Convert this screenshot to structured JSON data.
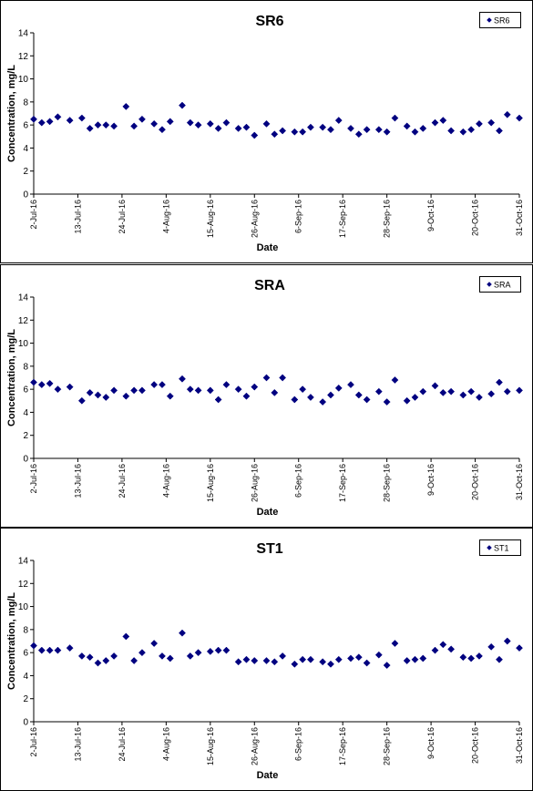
{
  "chart_data": [
    {
      "type": "scatter",
      "title": "SR6",
      "xlabel": "Date",
      "ylabel": "Concentration, mg/L",
      "ylim": [
        0,
        14
      ],
      "yticks": [
        "0",
        "2",
        "4",
        "6",
        "8",
        "10",
        "12",
        "14"
      ],
      "xticks": [
        "2-Jul-16",
        "13-Jul-16",
        "24-Jul-16",
        "4-Aug-16",
        "15-Aug-16",
        "26-Aug-16",
        "6-Sep-16",
        "17-Sep-16",
        "28-Sep-16",
        "9-Oct-16",
        "20-Oct-16",
        "31-Oct-16"
      ],
      "legend": "top-right",
      "grid": false,
      "marker_color": "#000080",
      "series": [
        {
          "name": "SR6",
          "x": [
            "2016-07-02",
            "2016-07-04",
            "2016-07-06",
            "2016-07-08",
            "2016-07-11",
            "2016-07-14",
            "2016-07-16",
            "2016-07-18",
            "2016-07-20",
            "2016-07-22",
            "2016-07-25",
            "2016-07-27",
            "2016-07-29",
            "2016-08-01",
            "2016-08-03",
            "2016-08-05",
            "2016-08-08",
            "2016-08-10",
            "2016-08-12",
            "2016-08-15",
            "2016-08-17",
            "2016-08-19",
            "2016-08-22",
            "2016-08-24",
            "2016-08-26",
            "2016-08-29",
            "2016-08-31",
            "2016-09-02",
            "2016-09-05",
            "2016-09-07",
            "2016-09-09",
            "2016-09-12",
            "2016-09-14",
            "2016-09-16",
            "2016-09-19",
            "2016-09-21",
            "2016-09-23",
            "2016-09-26",
            "2016-09-28",
            "2016-09-30",
            "2016-10-03",
            "2016-10-05",
            "2016-10-07",
            "2016-10-10",
            "2016-10-12",
            "2016-10-14",
            "2016-10-17",
            "2016-10-19",
            "2016-10-21",
            "2016-10-24",
            "2016-10-26",
            "2016-10-28",
            "2016-10-31"
          ],
          "y": [
            6.5,
            6.2,
            6.3,
            6.7,
            6.4,
            6.6,
            5.7,
            6.0,
            6.0,
            5.9,
            7.6,
            5.9,
            6.5,
            6.1,
            5.6,
            6.3,
            7.7,
            6.2,
            6.0,
            6.1,
            5.7,
            6.2,
            5.7,
            5.8,
            5.1,
            6.1,
            5.2,
            5.5,
            5.4,
            5.4,
            5.8,
            5.8,
            5.6,
            6.4,
            5.7,
            5.2,
            5.6,
            5.6,
            5.4,
            6.6,
            5.9,
            5.4,
            5.7,
            6.2,
            6.4,
            5.5,
            5.4,
            5.6,
            6.1,
            6.2,
            5.5,
            6.9,
            6.6
          ]
        }
      ]
    },
    {
      "type": "scatter",
      "title": "SRA",
      "xlabel": "Date",
      "ylabel": "Concentration, mg/L",
      "ylim": [
        0,
        14
      ],
      "yticks": [
        "0",
        "2",
        "4",
        "6",
        "8",
        "10",
        "12",
        "14"
      ],
      "xticks": [
        "2-Jul-16",
        "13-Jul-16",
        "24-Jul-16",
        "4-Aug-16",
        "15-Aug-16",
        "26-Aug-16",
        "6-Sep-16",
        "17-Sep-16",
        "28-Sep-16",
        "9-Oct-16",
        "20-Oct-16",
        "31-Oct-16"
      ],
      "legend": "top-right",
      "grid": false,
      "marker_color": "#000080",
      "series": [
        {
          "name": "SRA",
          "x": [
            "2016-07-02",
            "2016-07-04",
            "2016-07-06",
            "2016-07-08",
            "2016-07-11",
            "2016-07-14",
            "2016-07-16",
            "2016-07-18",
            "2016-07-20",
            "2016-07-22",
            "2016-07-25",
            "2016-07-27",
            "2016-07-29",
            "2016-08-01",
            "2016-08-03",
            "2016-08-05",
            "2016-08-08",
            "2016-08-10",
            "2016-08-12",
            "2016-08-15",
            "2016-08-17",
            "2016-08-19",
            "2016-08-22",
            "2016-08-24",
            "2016-08-26",
            "2016-08-29",
            "2016-08-31",
            "2016-09-02",
            "2016-09-05",
            "2016-09-07",
            "2016-09-09",
            "2016-09-12",
            "2016-09-14",
            "2016-09-16",
            "2016-09-19",
            "2016-09-21",
            "2016-09-23",
            "2016-09-26",
            "2016-09-28",
            "2016-09-30",
            "2016-10-03",
            "2016-10-05",
            "2016-10-07",
            "2016-10-10",
            "2016-10-12",
            "2016-10-14",
            "2016-10-17",
            "2016-10-19",
            "2016-10-21",
            "2016-10-24",
            "2016-10-26",
            "2016-10-28",
            "2016-10-31"
          ],
          "y": [
            6.6,
            6.4,
            6.5,
            6.0,
            6.2,
            5.0,
            5.7,
            5.5,
            5.3,
            5.9,
            5.4,
            5.9,
            5.9,
            6.4,
            6.4,
            5.4,
            6.9,
            6.0,
            5.9,
            5.9,
            5.1,
            6.4,
            6.0,
            5.4,
            6.2,
            7.0,
            5.7,
            7.0,
            5.1,
            6.0,
            5.3,
            4.9,
            5.5,
            6.1,
            6.4,
            5.5,
            5.1,
            5.8,
            4.9,
            6.8,
            5.0,
            5.3,
            5.8,
            6.3,
            5.7,
            5.8,
            5.5,
            5.8,
            5.3,
            5.6,
            6.6,
            5.8,
            5.9
          ]
        }
      ]
    },
    {
      "type": "scatter",
      "title": "ST1",
      "xlabel": "Date",
      "ylabel": "Concentration, mg/L",
      "ylim": [
        0,
        14
      ],
      "yticks": [
        "0",
        "2",
        "4",
        "6",
        "8",
        "10",
        "12",
        "14"
      ],
      "xticks": [
        "2-Jul-16",
        "13-Jul-16",
        "24-Jul-16",
        "4-Aug-16",
        "15-Aug-16",
        "26-Aug-16",
        "6-Sep-16",
        "17-Sep-16",
        "28-Sep-16",
        "9-Oct-16",
        "20-Oct-16",
        "31-Oct-16"
      ],
      "legend": "top-right",
      "grid": false,
      "marker_color": "#000080",
      "series": [
        {
          "name": "ST1",
          "x": [
            "2016-07-02",
            "2016-07-04",
            "2016-07-06",
            "2016-07-08",
            "2016-07-11",
            "2016-07-14",
            "2016-07-16",
            "2016-07-18",
            "2016-07-20",
            "2016-07-22",
            "2016-07-25",
            "2016-07-27",
            "2016-07-29",
            "2016-08-01",
            "2016-08-03",
            "2016-08-05",
            "2016-08-08",
            "2016-08-10",
            "2016-08-12",
            "2016-08-15",
            "2016-08-17",
            "2016-08-19",
            "2016-08-22",
            "2016-08-24",
            "2016-08-26",
            "2016-08-29",
            "2016-08-31",
            "2016-09-02",
            "2016-09-05",
            "2016-09-07",
            "2016-09-09",
            "2016-09-12",
            "2016-09-14",
            "2016-09-16",
            "2016-09-19",
            "2016-09-21",
            "2016-09-23",
            "2016-09-26",
            "2016-09-28",
            "2016-09-30",
            "2016-10-03",
            "2016-10-05",
            "2016-10-07",
            "2016-10-10",
            "2016-10-12",
            "2016-10-14",
            "2016-10-17",
            "2016-10-19",
            "2016-10-21",
            "2016-10-24",
            "2016-10-26",
            "2016-10-28",
            "2016-10-31"
          ],
          "y": [
            6.6,
            6.2,
            6.2,
            6.2,
            6.4,
            5.7,
            5.6,
            5.1,
            5.3,
            5.7,
            7.4,
            5.3,
            6.0,
            6.8,
            5.7,
            5.5,
            7.7,
            5.7,
            6.0,
            6.1,
            6.2,
            6.2,
            5.2,
            5.4,
            5.3,
            5.3,
            5.2,
            5.7,
            5.0,
            5.4,
            5.4,
            5.2,
            5.0,
            5.4,
            5.5,
            5.6,
            5.1,
            5.8,
            4.9,
            6.8,
            5.3,
            5.4,
            5.5,
            6.2,
            6.7,
            6.3,
            5.6,
            5.5,
            5.7,
            6.5,
            5.4,
            7.0,
            6.4
          ]
        }
      ]
    }
  ]
}
